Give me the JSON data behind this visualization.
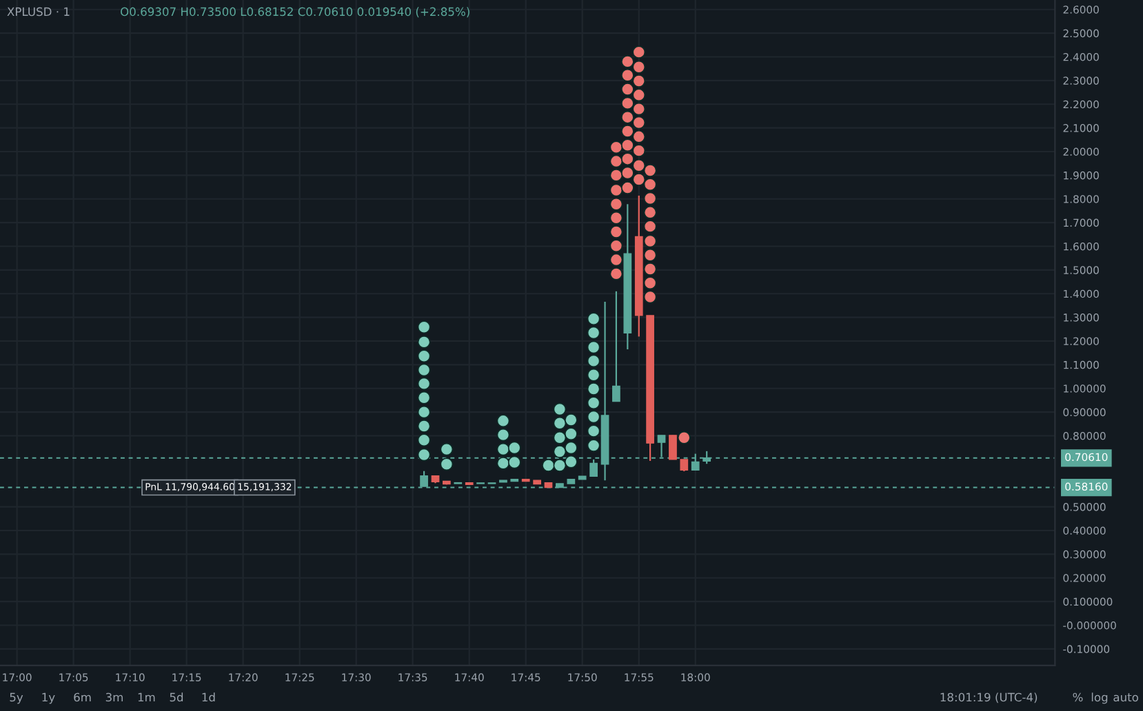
{
  "chart_data": {
    "type": "candlestick",
    "title": "XPLUSD · 1",
    "subtitle": "O0.69307 H0.73500 L0.68152 C0.70610 0.019540 (+2.85%)",
    "x": [
      17.6,
      17.6167,
      17.6333,
      17.65,
      17.6667,
      17.6833,
      17.7,
      17.7167,
      17.7333,
      17.75,
      17.7667,
      17.7833,
      17.8,
      17.8167,
      17.8333,
      17.85,
      17.8667,
      17.8833,
      17.9,
      17.9167,
      17.9333,
      17.95,
      17.9667,
      17.9833,
      18.0,
      18.0167
    ],
    "ohlc": [
      [
        0.586,
        0.651,
        0.586,
        0.631
      ],
      [
        0.631,
        0.631,
        0.6,
        0.606
      ],
      [
        0.608,
        0.608,
        0.594,
        0.596
      ],
      [
        0.598,
        0.602,
        0.598,
        0.602
      ],
      [
        0.602,
        0.602,
        0.594,
        0.594
      ],
      [
        0.598,
        0.6,
        0.598,
        0.6
      ],
      [
        0.598,
        0.6,
        0.598,
        0.6
      ],
      [
        0.604,
        0.612,
        0.604,
        0.612
      ],
      [
        0.608,
        0.616,
        0.608,
        0.616
      ],
      [
        0.616,
        0.616,
        0.608,
        0.608
      ],
      [
        0.612,
        0.612,
        0.596,
        0.596
      ],
      [
        0.602,
        0.602,
        0.582,
        0.582
      ],
      [
        0.582,
        0.598,
        0.582,
        0.598
      ],
      [
        0.598,
        0.616,
        0.598,
        0.616
      ],
      [
        0.616,
        0.629,
        0.616,
        0.629
      ],
      [
        0.629,
        0.7,
        0.629,
        0.684
      ],
      [
        0.68,
        1.366,
        0.612,
        0.886
      ],
      [
        0.945,
        1.41,
        0.945,
        1.01
      ],
      [
        1.234,
        1.778,
        1.165,
        1.569
      ],
      [
        1.641,
        1.814,
        1.219,
        1.308
      ],
      [
        1.308,
        1.308,
        0.694,
        0.769
      ],
      [
        0.772,
        0.802,
        0.71,
        0.802
      ],
      [
        0.802,
        0.802,
        0.7,
        0.7
      ],
      [
        0.7,
        0.7,
        0.65,
        0.655
      ],
      [
        0.655,
        0.724,
        0.655,
        0.69
      ],
      [
        0.69307,
        0.735,
        0.68152,
        0.7061
      ]
    ],
    "colors": [
      "#5ba99b",
      "#e2605b",
      "#e2605b",
      "#5ba99b",
      "#e2605b",
      "#5ba99b",
      "#5ba99b",
      "#5ba99b",
      "#5ba99b",
      "#e2605b",
      "#e2605b",
      "#e2605b",
      "#5ba99b",
      "#5ba99b",
      "#5ba99b",
      "#5ba99b",
      "#5ba99b",
      "#5ba99b",
      "#5ba99b",
      "#e2605b",
      "#e2605b",
      "#5ba99b",
      "#e2605b",
      "#e2605b",
      "#5ba99b",
      "#5ba99b"
    ],
    "series": [
      {
        "type": "scatter",
        "color": "#7fcdbb",
        "x": [
          17.6,
          17.6,
          17.6,
          17.6,
          17.6,
          17.6,
          17.6,
          17.6,
          17.6,
          17.6,
          17.6333,
          17.6333,
          17.7167,
          17.7167,
          17.7167,
          17.7167,
          17.7333,
          17.7333,
          17.7833,
          17.8,
          17.8,
          17.8,
          17.8,
          17.8,
          17.8167,
          17.8167,
          17.8167,
          17.8167,
          17.85,
          17.85,
          17.85,
          17.85,
          17.85,
          17.85,
          17.85,
          17.85,
          17.85,
          17.85
        ],
        "values": [
          1.259,
          1.196,
          1.137,
          1.078,
          1.02,
          0.961,
          0.9,
          0.841,
          0.782,
          0.72,
          0.743,
          0.68,
          0.863,
          0.804,
          0.743,
          0.684,
          0.749,
          0.688,
          0.675,
          0.912,
          0.853,
          0.792,
          0.733,
          0.675,
          0.867,
          0.808,
          0.749,
          0.69,
          1.294,
          1.235,
          1.174,
          1.116,
          1.057,
          0.998,
          0.939,
          0.88,
          0.82,
          0.759
        ]
      },
      {
        "type": "scatter",
        "color": "#ec7470",
        "x": [
          17.8833,
          17.8833,
          17.8833,
          17.8833,
          17.8833,
          17.8833,
          17.8833,
          17.8833,
          17.8833,
          17.8833,
          17.9,
          17.9,
          17.9,
          17.9,
          17.9,
          17.9,
          17.9,
          17.9,
          17.9,
          17.9,
          17.9167,
          17.9167,
          17.9167,
          17.9167,
          17.9167,
          17.9167,
          17.9167,
          17.9167,
          17.9167,
          17.9167,
          17.9333,
          17.9333,
          17.9333,
          17.9333,
          17.9333,
          17.9333,
          17.9333,
          17.9333,
          17.9333,
          17.9333,
          17.9833
        ],
        "values": [
          2.018,
          1.959,
          1.9,
          1.837,
          1.778,
          1.72,
          1.661,
          1.602,
          1.543,
          1.484,
          2.38,
          2.322,
          2.263,
          2.204,
          2.145,
          2.086,
          2.027,
          1.969,
          1.91,
          1.847,
          2.42,
          2.357,
          2.298,
          2.239,
          2.18,
          2.122,
          2.063,
          2.004,
          1.941,
          1.882,
          1.92,
          1.861,
          1.802,
          1.743,
          1.684,
          1.622,
          1.563,
          1.504,
          1.445,
          1.386,
          0.792
        ]
      }
    ],
    "marker": "circle",
    "xlim": [
      16.975,
      18.53
    ],
    "xticks": [
      {
        "value": 17.0,
        "label": "17:00"
      },
      {
        "value": 17.0833,
        "label": "17:05"
      },
      {
        "value": 17.1667,
        "label": "17:10"
      },
      {
        "value": 17.25,
        "label": "17:15"
      },
      {
        "value": 17.3333,
        "label": "17:20"
      },
      {
        "value": 17.4167,
        "label": "17:25"
      },
      {
        "value": 17.5,
        "label": "17:30"
      },
      {
        "value": 17.5833,
        "label": "17:35"
      },
      {
        "value": 17.6667,
        "label": "17:40"
      },
      {
        "value": 17.75,
        "label": "17:45"
      },
      {
        "value": 17.8333,
        "label": "17:50"
      },
      {
        "value": 17.9167,
        "label": "17:55"
      },
      {
        "value": 18.0,
        "label": "18:00"
      }
    ],
    "ylim": [
      -0.17,
      2.64
    ],
    "yticks": [
      {
        "value": 2.6,
        "label": "2.6000"
      },
      {
        "value": 2.5,
        "label": "2.5000"
      },
      {
        "value": 2.4,
        "label": "2.4000"
      },
      {
        "value": 2.3,
        "label": "2.3000"
      },
      {
        "value": 2.2,
        "label": "2.2000"
      },
      {
        "value": 2.1,
        "label": "2.1000"
      },
      {
        "value": 2.0,
        "label": "2.0000"
      },
      {
        "value": 1.9,
        "label": "1.9000"
      },
      {
        "value": 1.8,
        "label": "1.8000"
      },
      {
        "value": 1.7,
        "label": "1.7000"
      },
      {
        "value": 1.6,
        "label": "1.6000"
      },
      {
        "value": 1.5,
        "label": "1.5000"
      },
      {
        "value": 1.4,
        "label": "1.4000"
      },
      {
        "value": 1.3,
        "label": "1.3000"
      },
      {
        "value": 1.2,
        "label": "1.2000"
      },
      {
        "value": 1.1,
        "label": "1.1000"
      },
      {
        "value": 1.0,
        "label": "1.00000"
      },
      {
        "value": 0.9,
        "label": "0.90000"
      },
      {
        "value": 0.8,
        "label": "0.80000"
      },
      {
        "value": 0.5,
        "label": "0.50000"
      },
      {
        "value": 0.4,
        "label": "0.40000"
      },
      {
        "value": 0.3,
        "label": "0.30000"
      },
      {
        "value": 0.2,
        "label": "0.20000"
      },
      {
        "value": 0.1,
        "label": "0.100000"
      },
      {
        "value": 0.0,
        "label": "-0.000000"
      },
      {
        "value": -0.1,
        "label": "-0.10000"
      }
    ],
    "grid": true,
    "ref_lines": [
      {
        "axis": "y",
        "value": 0.7061,
        "label": "0.70610",
        "color": "#5ba99b",
        "line_style": "dashed"
      },
      {
        "axis": "y",
        "value": 0.5816,
        "label": "0.58160",
        "color": "#5ba99b",
        "line_style": "dashed"
      }
    ],
    "annotations": [
      {
        "text": "PnL 11,790,944.60",
        "x": 17.255,
        "y": 0.5816
      },
      {
        "text": "15,191,332",
        "x": 17.365,
        "y": 0.5816
      },
      "5y",
      "1y",
      "6m",
      "3m",
      "1m",
      "5d",
      "1d",
      "18:01:19 (UTC-4)",
      "%",
      "log",
      "auto"
    ]
  }
}
